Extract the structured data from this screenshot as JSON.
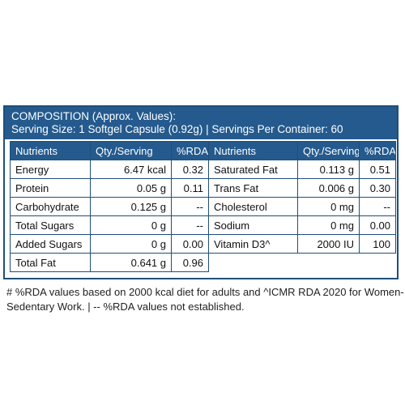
{
  "composition": {
    "title": "COMPOSITION (Approx. Values):",
    "serving_line": "Serving Size: 1 Softgel Capsule (0.92g) | Servings Per Container: 60"
  },
  "headers": {
    "nutrients": "Nutrients",
    "qty": "Qty./Serving",
    "rda": "%RDA#"
  },
  "left_rows": [
    {
      "name": "Energy",
      "qty": "6.47 kcal",
      "rda": "0.32"
    },
    {
      "name": "Protein",
      "qty": "0.05 g",
      "rda": "0.11"
    },
    {
      "name": "Carbohydrate",
      "qty": "0.125 g",
      "rda": "--"
    },
    {
      "name": "Total Sugars",
      "qty": "0 g",
      "rda": "--"
    },
    {
      "name": "Added Sugars",
      "qty": "0 g",
      "rda": "0.00"
    },
    {
      "name": "Total Fat",
      "qty": "0.641 g",
      "rda": "0.96"
    }
  ],
  "right_rows": [
    {
      "name": "Saturated Fat",
      "qty": "0.113 g",
      "rda": "0.51"
    },
    {
      "name": "Trans Fat",
      "qty": "0.006 g",
      "rda": "0.30"
    },
    {
      "name": "Cholesterol",
      "qty": "0 mg",
      "rda": "--"
    },
    {
      "name": "Sodium",
      "qty": "0 mg",
      "rda": "0.00"
    },
    {
      "name": "Vitamin D3^",
      "qty": "2000 IU",
      "rda": "100"
    }
  ],
  "footnote": {
    "line1": "# %RDA values based on 2000 kcal diet for adults and ^ICMR RDA 2020 for Women-",
    "line2": "Sedentary Work. | -- %RDA values not established."
  },
  "colors": {
    "header_bg": "#245a8d",
    "border": "#1f4f7a"
  }
}
